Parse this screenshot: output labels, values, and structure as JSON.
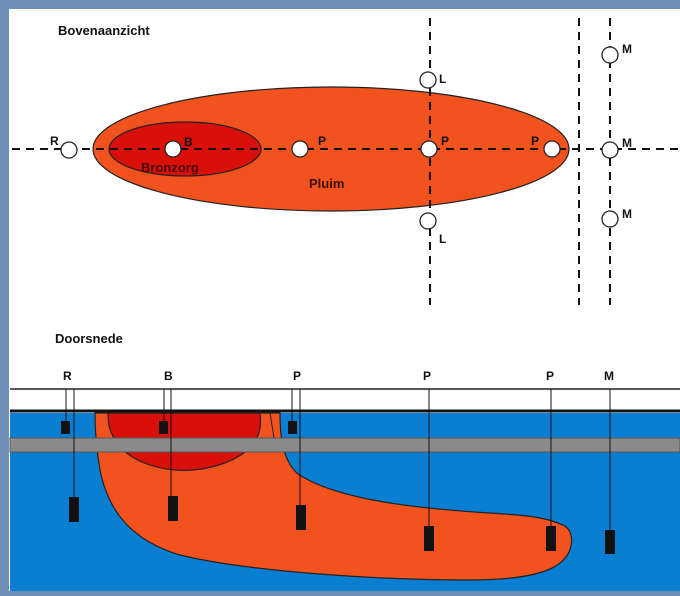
{
  "colors": {
    "frame": "#6f8fb5",
    "panel": "#ffffff",
    "plume": "#f2521e",
    "source": "#d90f0a",
    "water": "#0a7fd2",
    "clay": "#8a8a8a",
    "ink": "#111111"
  },
  "top_view": {
    "title": "Bovenaanzicht",
    "plume_label": "Pluim",
    "source_label": "Bronzorg",
    "wells": {
      "reference": "R",
      "source": "B",
      "plume_1": "P",
      "plume_2": "P",
      "plume_3": "P",
      "lateral_top": "L",
      "lateral_bottom": "L",
      "monitor_top": "M",
      "monitor_middle": "M",
      "monitor_bottom": "M"
    }
  },
  "cross_section": {
    "title": "Doorsnede",
    "wells": {
      "reference": "R",
      "source": "B",
      "plume_1": "P",
      "plume_2": "P",
      "plume_3": "P",
      "monitor": "M"
    }
  }
}
